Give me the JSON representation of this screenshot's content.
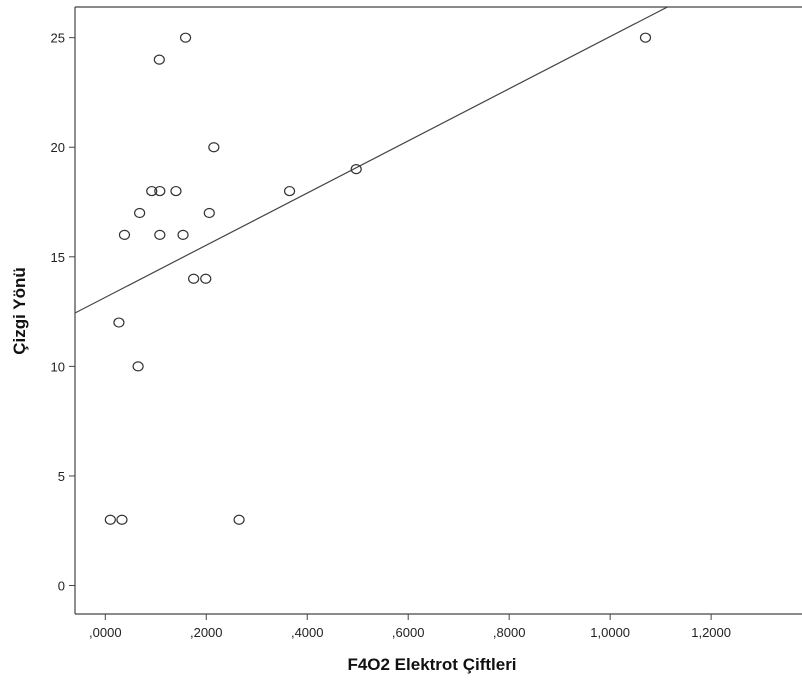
{
  "chart_data": {
    "type": "scatter",
    "xlabel": "F4O2 Elektrot Çiftleri",
    "ylabel": "Çizgi Yönü",
    "xlim": [
      -0.06,
      1.38
    ],
    "ylim": [
      -1.3,
      26.4
    ],
    "x_ticks": [
      0.0,
      0.2,
      0.4,
      0.6,
      0.8,
      1.0,
      1.2
    ],
    "x_tick_labels": [
      ",0000",
      ",2000",
      ",4000",
      ",6000",
      ",8000",
      "1,0000",
      "1,2000"
    ],
    "y_ticks": [
      0,
      5,
      10,
      15,
      20,
      25
    ],
    "y_tick_labels": [
      "0",
      "5",
      "10",
      "15",
      "20",
      "25"
    ],
    "grid": false,
    "points": [
      {
        "x": 0.01,
        "y": 3
      },
      {
        "x": 0.033,
        "y": 3
      },
      {
        "x": 0.265,
        "y": 3
      },
      {
        "x": 0.027,
        "y": 12
      },
      {
        "x": 0.065,
        "y": 10
      },
      {
        "x": 0.038,
        "y": 16
      },
      {
        "x": 0.068,
        "y": 17
      },
      {
        "x": 0.092,
        "y": 18
      },
      {
        "x": 0.108,
        "y": 18
      },
      {
        "x": 0.14,
        "y": 18
      },
      {
        "x": 0.108,
        "y": 16
      },
      {
        "x": 0.154,
        "y": 16
      },
      {
        "x": 0.175,
        "y": 14
      },
      {
        "x": 0.199,
        "y": 14
      },
      {
        "x": 0.206,
        "y": 17
      },
      {
        "x": 0.215,
        "y": 20
      },
      {
        "x": 0.107,
        "y": 24
      },
      {
        "x": 0.159,
        "y": 25
      },
      {
        "x": 0.365,
        "y": 18
      },
      {
        "x": 0.497,
        "y": 19
      },
      {
        "x": 1.07,
        "y": 25
      }
    ],
    "fit_line": {
      "intercept": 13.15,
      "slope": 11.9
    },
    "colors": {
      "marker_stroke": "#333333",
      "line": "#444444",
      "axis": "#444444",
      "background": "#ffffff"
    }
  }
}
